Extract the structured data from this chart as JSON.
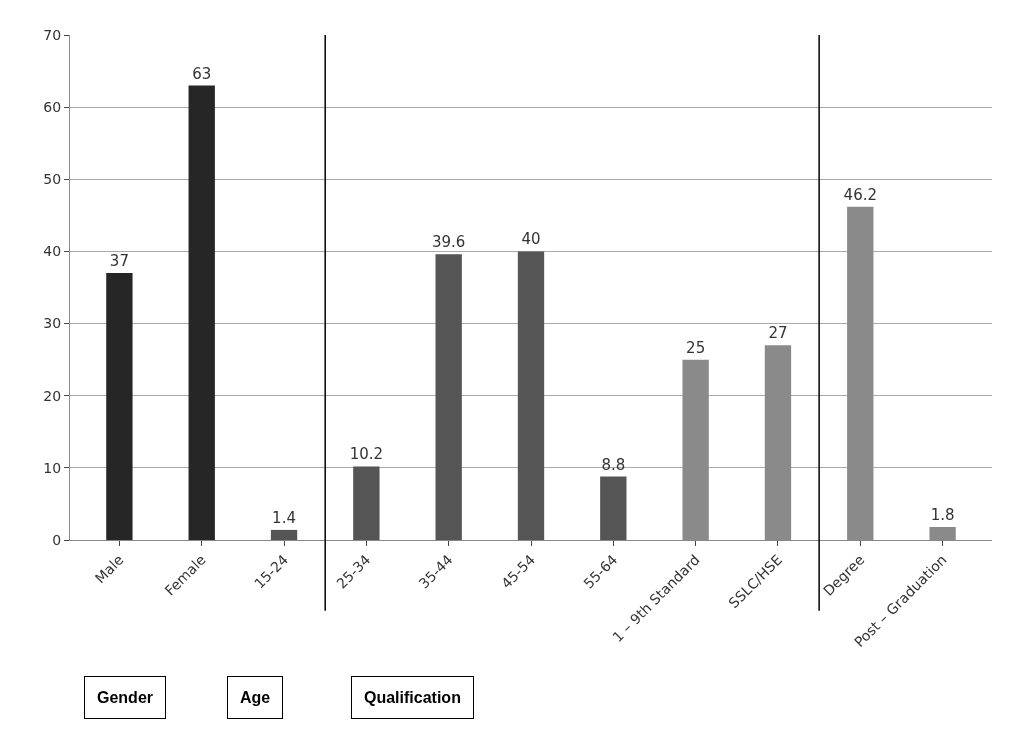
{
  "chart_data": {
    "type": "bar",
    "categories": [
      "Male",
      "Female",
      "15-24",
      "25-34",
      "35-44",
      "45-54",
      "55-64",
      "1 – 9th Standard",
      "SSLC/HSE",
      "Degree",
      "Post – Graduation"
    ],
    "values": [
      37,
      63,
      1.4,
      10.2,
      39.6,
      40,
      8.8,
      25,
      27,
      46.2,
      1.8
    ],
    "colors": [
      "#262626",
      "#262626",
      "#555555",
      "#555555",
      "#555555",
      "#555555",
      "#555555",
      "#8a8a8a",
      "#8a8a8a",
      "#8a8a8a",
      "#8a8a8a"
    ],
    "ylim": [
      0,
      70
    ],
    "yticks": [
      0,
      10,
      20,
      30,
      40,
      50,
      60,
      70
    ],
    "grid": "y",
    "data_labels": true,
    "annotations": [
      "Gender",
      "Age",
      "Qualification"
    ]
  }
}
